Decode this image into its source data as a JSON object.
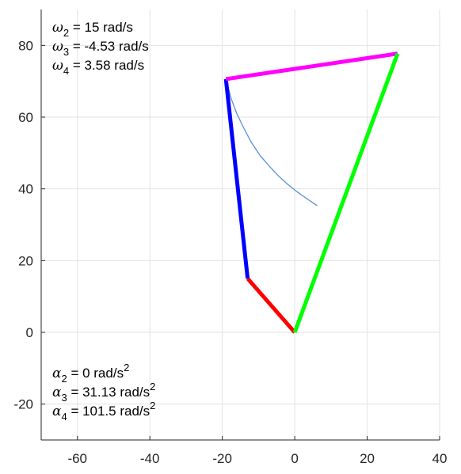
{
  "chart_data": {
    "type": "line",
    "title": "",
    "xlabel": "",
    "ylabel": "",
    "xlim": [
      -70,
      40
    ],
    "ylim": [
      -30,
      90
    ],
    "xticks": [
      -60,
      -40,
      -20,
      0,
      20,
      40
    ],
    "yticks": [
      -20,
      0,
      20,
      40,
      60,
      80
    ],
    "grid": true,
    "legend": "none",
    "links": [
      {
        "from": [
          0,
          0
        ],
        "to": [
          -13,
          15
        ],
        "color": "#ff0000"
      },
      {
        "from": [
          -13,
          15
        ],
        "to": [
          -19,
          70.6
        ],
        "color": "#0000ff"
      },
      {
        "from": [
          -19,
          70.6
        ],
        "to": [
          28.4,
          77.7
        ],
        "color": "#ff00ff"
      },
      {
        "from": [
          28.4,
          77.7
        ],
        "to": [
          0,
          0
        ],
        "color": "#00ff00"
      }
    ],
    "trace": {
      "color": "#5b8fd6",
      "x": [
        -19,
        -17.5,
        -16,
        -14,
        -12,
        -9.5,
        -7,
        -4.5,
        -2,
        0.5,
        3,
        6.2
      ],
      "y": [
        70.6,
        65,
        61,
        56.8,
        53,
        49.2,
        46.3,
        43.6,
        41.3,
        39.3,
        37.5,
        35.3
      ]
    },
    "annotations_top": [
      {
        "symbol": "ω",
        "sub": "2",
        "text": " = 15 rad/s"
      },
      {
        "symbol": "ω",
        "sub": "3",
        "text": " = -4.53 rad/s"
      },
      {
        "symbol": "ω",
        "sub": "4",
        "text": " = 3.58 rad/s"
      }
    ],
    "annotations_bottom": [
      {
        "symbol": "α",
        "sub": "2",
        "text": " = 0 rad/s",
        "sup": "2"
      },
      {
        "symbol": "α",
        "sub": "3",
        "text": " = 31.13 rad/s",
        "sup": "2"
      },
      {
        "symbol": "α",
        "sub": "4",
        "text": " = 101.5 rad/s",
        "sup": "2"
      }
    ]
  }
}
